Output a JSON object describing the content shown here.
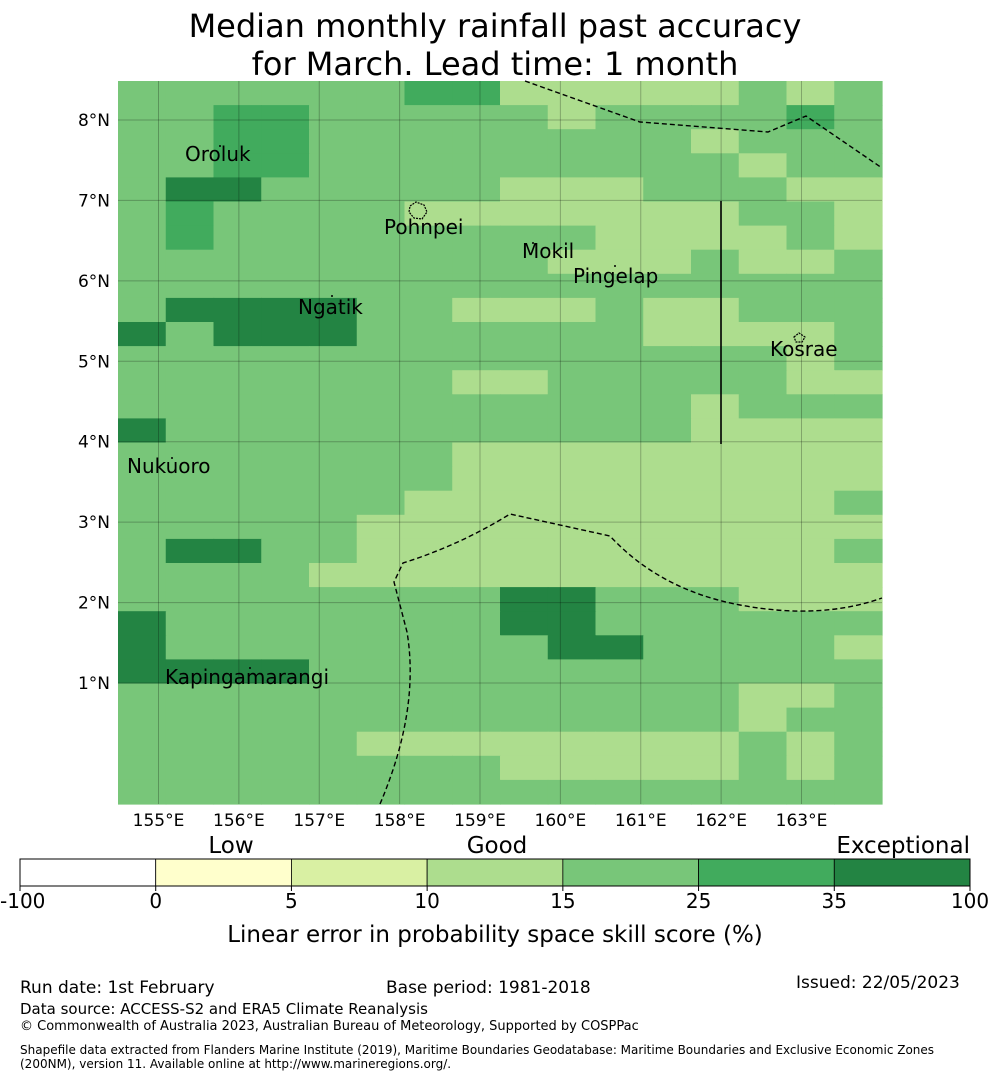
{
  "title": {
    "line1": "Median monthly rainfall past accuracy",
    "line2": "for March. Lead time: 1 month"
  },
  "map": {
    "lat_ticks": [
      "8°N",
      "7°N",
      "6°N",
      "5°N",
      "4°N",
      "3°N",
      "2°N",
      "1°N"
    ],
    "lon_ticks": [
      "155°E",
      "156°E",
      "157°E",
      "158°E",
      "159°E",
      "160°E",
      "161°E",
      "162°E",
      "163°E"
    ],
    "place_labels": [
      "Oroluk",
      "Pohnpei",
      "Mokil",
      "Pingelap",
      "Ngatik",
      "Kosrae",
      "Nukuoro",
      "Kapingamarangi"
    ],
    "grid_categories": [
      "3333334422222323",
      "3344333332333343",
      "3344333333332333",
      "3344333333333233",
      "3553333322233322",
      "3433332222222332",
      "3433333333222232",
      "3333333332223223",
      "3333333333333333",
      "3555533222322333",
      "5355533333322223",
      "3333333333333323",
      "3333333223333322",
      "3333333333332333",
      "5333333333332222",
      "3333333222222222",
      "3333333222222222",
      "3333332222222223",
      "3333322222222222",
      "3553322222222223",
      "3333222222222222",
      "3333333355333222",
      "5333333355333333",
      "5333333335533332",
      "5555333333333333",
      "3333333333333223",
      "3333333333333233",
      "3333322222222323",
      "3333333322222323",
      "3333333333333333"
    ]
  },
  "colorbar": {
    "category_labels": [
      "Low",
      "Good",
      "Exceptional"
    ],
    "tick_labels": [
      "-100",
      "0",
      "5",
      "10",
      "15",
      "25",
      "35",
      "100"
    ],
    "colors": [
      "#ffffff",
      "#ffffcc",
      "#d9f0a3",
      "#addd8e",
      "#78c679",
      "#41ab5d",
      "#238443"
    ],
    "label": "Linear error in probability space skill score (%)"
  },
  "footer": {
    "run_date": "Run date: 1st February",
    "base_period": "Base period: 1981-2018",
    "issued": "Issued: 22/05/2023",
    "data_source": "Data source: ACCESS-S2 and ERA5 Climate Reanalysis",
    "copyright": "© Commonwealth of Australia 2023, Australian Bureau of Meteorology, Supported by COSPPac",
    "shapefile_line1": "Shapefile data extracted from Flanders Marine Institute (2019), Maritime Boundaries Geodatabase: Maritime Boundaries and Exclusive Economic Zones",
    "shapefile_line2": "(200NM), version 11. Available online at http://www.marineregions.org/."
  }
}
